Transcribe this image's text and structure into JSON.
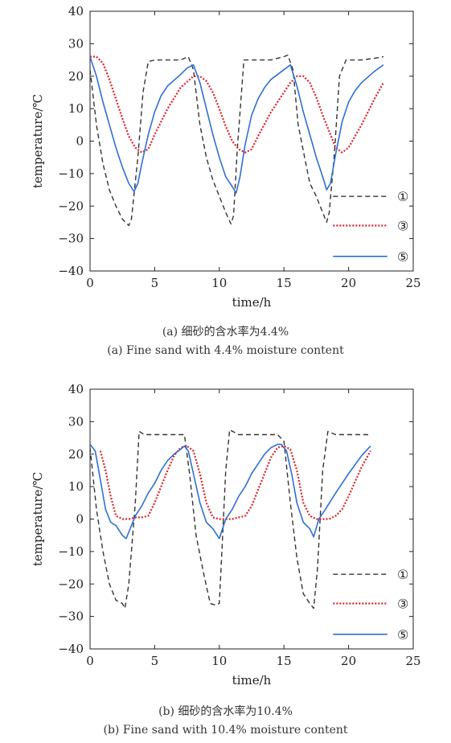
{
  "chart_data": [
    {
      "type": "line",
      "xlabel": "time/h",
      "ylabel": "temperature/℃",
      "xlim": [
        0,
        25
      ],
      "ylim": [
        -40,
        40
      ],
      "xticks": [
        "0",
        "5",
        "10",
        "15",
        "20",
        "25"
      ],
      "yticks": [
        "−40",
        "−30",
        "−20",
        "−10",
        "0",
        "10",
        "20",
        "30",
        "40"
      ],
      "legend_position": "bottom-right",
      "caption_cn": "(a) 细砂的含水率为4.4%",
      "caption_en": "(a) Fine sand with 4.4% moisture content",
      "series": [
        {
          "name": "①",
          "color": "#333333",
          "style": "dashed",
          "x": [
            0,
            0.5,
            1,
            1.5,
            2,
            2.5,
            3,
            3.2,
            3.7,
            4.1,
            4.5,
            5,
            6,
            7,
            7.6,
            8,
            8.5,
            9,
            9.5,
            10,
            10.5,
            10.9,
            11.1,
            11.4,
            11.9,
            12.5,
            13,
            14,
            15,
            15.3,
            15.7,
            16.1,
            16.6,
            17,
            17.5,
            18,
            18.3,
            18.5,
            18.9,
            19.3,
            19.8,
            20.5,
            21,
            22,
            22.7
          ],
          "y": [
            22,
            5,
            -7,
            -15,
            -20,
            -24,
            -26,
            -24,
            -5,
            15,
            24.5,
            25,
            25,
            25,
            26,
            22,
            5,
            -5,
            -12,
            -17,
            -22,
            -25.5,
            -23,
            -2,
            25,
            25,
            25,
            25,
            26,
            26.5,
            22,
            5,
            -5,
            -13,
            -17,
            -22,
            -25,
            -22,
            -4,
            20,
            25,
            25,
            25,
            25.5,
            26
          ]
        },
        {
          "name": "③",
          "color": "#e0202a",
          "style": "dotted",
          "x": [
            0,
            0.5,
            1,
            1.5,
            2,
            2.5,
            3,
            3.5,
            4,
            4.5,
            5,
            5.5,
            6,
            7,
            8,
            8.5,
            9,
            9.5,
            10,
            10.5,
            11,
            11.5,
            12,
            12.5,
            13,
            14,
            15,
            15.5,
            16,
            16.5,
            17,
            17.5,
            18,
            18.5,
            19,
            19.5,
            20,
            21,
            22,
            22.7
          ],
          "y": [
            26,
            26,
            24,
            19,
            13,
            7,
            1.5,
            -2,
            -3.5,
            -2.5,
            2,
            6,
            10,
            16.5,
            20,
            20,
            18.5,
            15,
            10,
            4.5,
            0,
            -2.5,
            -3.5,
            -2.5,
            1.5,
            9,
            15,
            18,
            20,
            20,
            18,
            13.5,
            8,
            3,
            -2,
            -3.5,
            -2,
            5,
            13,
            18
          ]
        },
        {
          "name": "⑤",
          "color": "#2f6fd4",
          "style": "solid",
          "x": [
            0,
            0.5,
            1,
            1.5,
            2,
            2.5,
            3,
            3.4,
            3.7,
            4,
            4.5,
            5,
            5.5,
            6,
            7,
            7.5,
            8,
            8.5,
            9,
            9.5,
            10,
            10.5,
            11,
            11.3,
            11.6,
            12,
            12.5,
            13,
            13.5,
            14,
            15,
            15.5,
            16,
            16.5,
            17,
            17.5,
            18,
            18.3,
            18.6,
            19,
            19.5,
            20,
            20.5,
            21,
            22,
            22.7
          ],
          "y": [
            26,
            20,
            12,
            5,
            -2,
            -8,
            -13,
            -15.5,
            -13,
            -7,
            2,
            9,
            14,
            17,
            20.5,
            22.5,
            23.5,
            18,
            10,
            2,
            -5,
            -11,
            -14,
            -16,
            -11,
            -1,
            8,
            13,
            16.5,
            19,
            22,
            23.5,
            17,
            9,
            2,
            -5,
            -11,
            -15,
            -13,
            -4,
            6,
            12,
            15.5,
            18,
            21.5,
            23.5
          ]
        }
      ]
    },
    {
      "type": "line",
      "xlabel": "time/h",
      "ylabel": "temperature/℃",
      "xlim": [
        0,
        25
      ],
      "ylim": [
        -40,
        40
      ],
      "xticks": [
        "0",
        "5",
        "10",
        "15",
        "20",
        "25"
      ],
      "yticks": [
        "−40",
        "−30",
        "−20",
        "−10",
        "0",
        "10",
        "20",
        "30",
        "40"
      ],
      "legend_position": "bottom-right",
      "caption_cn": "(b) 细砂的含水率为10.4%",
      "caption_en": "(b) Fine sand with 10.4% moisture content",
      "series": [
        {
          "name": "①",
          "color": "#333333",
          "style": "dashed",
          "x": [
            0,
            0.5,
            1,
            1.5,
            2,
            2.5,
            2.7,
            3,
            3.5,
            3.8,
            4.2,
            5,
            6,
            7,
            7.3,
            7.7,
            8.2,
            8.8,
            9.3,
            9.7,
            10,
            10.2,
            10.5,
            10.8,
            11.5,
            12,
            13,
            14,
            14.5,
            15,
            15.5,
            16,
            16.5,
            17,
            17.3,
            17.6,
            18,
            18.4,
            19,
            20,
            21,
            21.7
          ],
          "y": [
            22,
            3,
            -10,
            -20,
            -25,
            -26,
            -27.5,
            -20,
            5,
            27,
            26,
            26,
            26,
            26,
            26,
            14,
            -5,
            -17,
            -26,
            -26.5,
            -26,
            -10,
            15,
            27.5,
            26,
            26,
            26,
            26,
            26,
            24,
            5,
            -12,
            -23,
            -26,
            -27.5,
            -15,
            15,
            27,
            26,
            26,
            26,
            26
          ]
        },
        {
          "name": "③",
          "color": "#e0202a",
          "style": "dotted",
          "x": [
            0.8,
            1.2,
            1.6,
            2,
            2.5,
            3,
            3.5,
            4,
            4.5,
            5,
            5.5,
            6,
            6.5,
            7,
            7.5,
            8,
            8.5,
            9,
            9.5,
            10,
            10.5,
            11,
            11.5,
            12,
            12.5,
            13,
            13.5,
            14,
            14.5,
            15,
            15.5,
            16,
            16.5,
            17,
            17.5,
            18,
            18.5,
            19,
            19.5,
            20,
            21,
            21.7
          ],
          "y": [
            21,
            15,
            7,
            1,
            0,
            0,
            0.5,
            0.5,
            1,
            5,
            10,
            15,
            19.5,
            22,
            22.5,
            21,
            14,
            5,
            0.5,
            0,
            0,
            0,
            0.5,
            1,
            4,
            9,
            14,
            19,
            22,
            22.5,
            21.5,
            15,
            5,
            1,
            0,
            0,
            0,
            1,
            3,
            7,
            16,
            21
          ]
        },
        {
          "name": "⑤",
          "color": "#2f6fd4",
          "style": "solid",
          "x": [
            0,
            0.4,
            0.8,
            1.2,
            1.6,
            2,
            2.5,
            2.8,
            3.2,
            3.5,
            4,
            4.5,
            5,
            5.5,
            6,
            6.5,
            7,
            7.3,
            7.6,
            8,
            8.5,
            9,
            9.5,
            10,
            10.5,
            11,
            11.5,
            12,
            12.5,
            13,
            13.5,
            14,
            14.5,
            14.8,
            15.2,
            15.6,
            16,
            16.5,
            17,
            17.3,
            17.7,
            18.2,
            19,
            20,
            21,
            21.7
          ],
          "y": [
            23,
            21,
            12,
            3,
            -1,
            -2,
            -5,
            -6,
            -2,
            1,
            4,
            8,
            11,
            15,
            18,
            20,
            21.5,
            22.5,
            21,
            14,
            5,
            -1,
            -3,
            -6,
            0,
            3,
            7,
            10,
            14,
            17,
            20,
            22,
            23,
            23,
            21,
            14,
            5,
            -1,
            -3,
            -5.5,
            0,
            3,
            8,
            14,
            19.5,
            22.5
          ]
        }
      ]
    }
  ]
}
